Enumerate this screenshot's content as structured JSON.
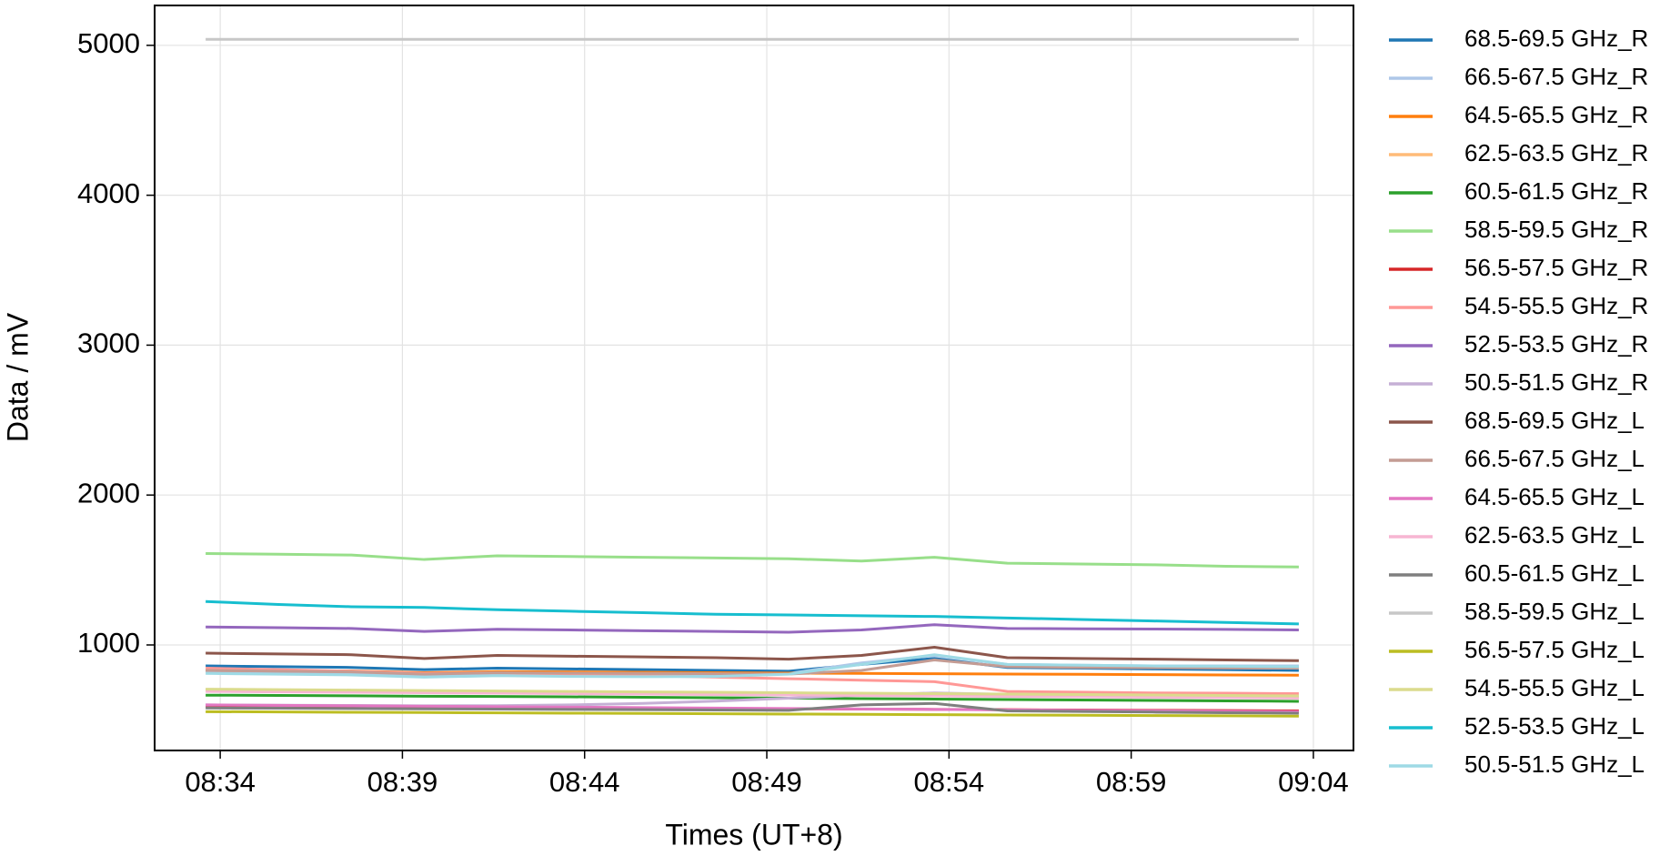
{
  "chart_data": {
    "type": "line",
    "xlabel": "Times (UT+8)",
    "ylabel": "Data / mV",
    "x": [
      513.6,
      515.6,
      517.6,
      519.6,
      521.6,
      523.6,
      525.6,
      527.6,
      529.6,
      531.6,
      533.6,
      535.6,
      537.6,
      539.6,
      541.6,
      543.6
    ],
    "xlim": [
      512.2,
      545.1
    ],
    "xticks": [
      {
        "value": 514,
        "label": "08:34"
      },
      {
        "value": 519,
        "label": "08:39"
      },
      {
        "value": 524,
        "label": "08:44"
      },
      {
        "value": 529,
        "label": "08:49"
      },
      {
        "value": 534,
        "label": "08:54"
      },
      {
        "value": 539,
        "label": "08:59"
      },
      {
        "value": 544,
        "label": "09:04"
      }
    ],
    "ylim": [
      296,
      5266
    ],
    "yticks": [
      1000,
      2000,
      3000,
      4000,
      5000
    ],
    "grid": true,
    "legend": "outside right",
    "series": [
      {
        "name": "68.5-69.5 GHz_R",
        "color": "#1f77b4",
        "values": [
          860,
          855,
          850,
          835,
          845,
          840,
          835,
          830,
          825,
          870,
          910,
          850,
          845,
          840,
          835,
          830
        ]
      },
      {
        "name": "66.5-67.5 GHz_R",
        "color": "#aec7e8",
        "values": [
          825,
          820,
          815,
          800,
          810,
          805,
          800,
          800,
          810,
          880,
          930,
          870,
          865,
          860,
          860,
          860
        ]
      },
      {
        "name": "64.5-65.5 GHz_R",
        "color": "#ff7f0e",
        "values": [
          830,
          828,
          826,
          815,
          822,
          820,
          818,
          815,
          812,
          810,
          808,
          806,
          804,
          802,
          800,
          798
        ]
      },
      {
        "name": "62.5-63.5 GHz_R",
        "color": "#ffbb78",
        "values": [
          700,
          697,
          694,
          690,
          688,
          685,
          682,
          679,
          676,
          673,
          670,
          667,
          664,
          661,
          658,
          655
        ]
      },
      {
        "name": "60.5-61.5 GHz_R",
        "color": "#2ca02c",
        "values": [
          665,
          663,
          661,
          658,
          656,
          654,
          651,
          648,
          645,
          642,
          639,
          636,
          633,
          630,
          627,
          624
        ]
      },
      {
        "name": "58.5-59.5 GHz_R",
        "color": "#98df8a",
        "values": [
          1610,
          1605,
          1600,
          1570,
          1595,
          1590,
          1585,
          1580,
          1575,
          1560,
          1585,
          1545,
          1540,
          1535,
          1525,
          1520
        ]
      },
      {
        "name": "56.5-57.5 GHz_R",
        "color": "#d62728",
        "values": [
          590,
          588,
          586,
          584,
          582,
          580,
          578,
          576,
          574,
          572,
          570,
          568,
          566,
          564,
          562,
          560
        ]
      },
      {
        "name": "54.5-55.5 GHz_R",
        "color": "#ff9896",
        "values": [
          845,
          835,
          825,
          810,
          815,
          805,
          795,
          785,
          775,
          765,
          755,
          690,
          685,
          680,
          678,
          675
        ]
      },
      {
        "name": "52.5-53.5 GHz_R",
        "color": "#9467bd",
        "values": [
          1120,
          1115,
          1110,
          1090,
          1105,
          1100,
          1095,
          1090,
          1085,
          1100,
          1135,
          1110,
          1108,
          1106,
          1104,
          1100
        ]
      },
      {
        "name": "50.5-51.5 GHz_R",
        "color": "#c5b0d5",
        "values": [
          600,
          598,
          596,
          594,
          595,
          600,
          610,
          625,
          645,
          665,
          680,
          670,
          665,
          660,
          655,
          650
        ]
      },
      {
        "name": "68.5-69.5 GHz_L",
        "color": "#8c564b",
        "values": [
          945,
          940,
          935,
          910,
          930,
          925,
          920,
          915,
          905,
          930,
          985,
          915,
          910,
          905,
          900,
          895
        ]
      },
      {
        "name": "66.5-67.5 GHz_L",
        "color": "#c49c94",
        "values": [
          830,
          825,
          820,
          805,
          815,
          812,
          810,
          808,
          806,
          830,
          900,
          855,
          850,
          848,
          846,
          845
        ]
      },
      {
        "name": "64.5-65.5 GHz_L",
        "color": "#e377c2",
        "values": [
          600,
          597,
          594,
          591,
          588,
          585,
          582,
          579,
          576,
          573,
          570,
          567,
          564,
          561,
          558,
          555
        ]
      },
      {
        "name": "62.5-63.5 GHz_L",
        "color": "#f7b6d2",
        "values": [
          690,
          687,
          684,
          681,
          678,
          675,
          672,
          669,
          666,
          663,
          660,
          657,
          654,
          651,
          648,
          645
        ]
      },
      {
        "name": "60.5-61.5 GHz_L",
        "color": "#7f7f7f",
        "values": [
          580,
          578,
          576,
          574,
          572,
          570,
          568,
          566,
          564,
          600,
          610,
          560,
          556,
          552,
          548,
          545
        ]
      },
      {
        "name": "58.5-59.5 GHz_L",
        "color": "#c7c7c7",
        "values": [
          5040,
          5040,
          5040,
          5040,
          5040,
          5040,
          5040,
          5040,
          5040,
          5040,
          5040,
          5040,
          5040,
          5040,
          5040,
          5040
        ]
      },
      {
        "name": "56.5-57.5 GHz_L",
        "color": "#bcbd22",
        "values": [
          555,
          553,
          551,
          549,
          547,
          545,
          543,
          541,
          539,
          537,
          535,
          533,
          531,
          529,
          527,
          525
        ]
      },
      {
        "name": "54.5-55.5 GHz_L",
        "color": "#dbdb8d",
        "values": [
          705,
          702,
          699,
          696,
          693,
          690,
          687,
          684,
          681,
          678,
          675,
          672,
          669,
          666,
          663,
          660
        ]
      },
      {
        "name": "52.5-53.5 GHz_L",
        "color": "#17becf",
        "values": [
          1290,
          1270,
          1255,
          1250,
          1235,
          1225,
          1215,
          1205,
          1200,
          1195,
          1190,
          1180,
          1170,
          1160,
          1150,
          1140
        ]
      },
      {
        "name": "50.5-51.5 GHz_L",
        "color": "#9edae5",
        "values": [
          810,
          805,
          800,
          785,
          795,
          790,
          788,
          790,
          805,
          870,
          935,
          870,
          865,
          860,
          858,
          855
        ]
      }
    ]
  }
}
